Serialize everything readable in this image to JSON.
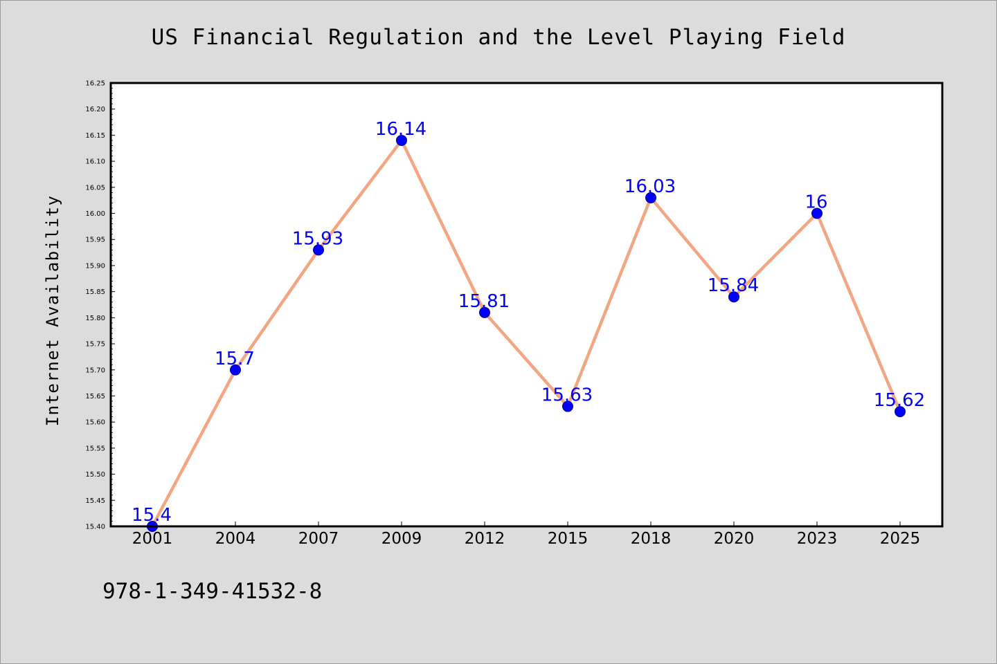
{
  "chart_data": {
    "type": "line",
    "title": "US Financial Regulation and the Level Playing Field",
    "xlabel": "",
    "ylabel": "Internet Availability",
    "categories": [
      "2001",
      "2004",
      "2007",
      "2009",
      "2012",
      "2015",
      "2018",
      "2020",
      "2023",
      "2025"
    ],
    "series": [
      {
        "values": [
          15.4,
          15.7,
          15.93,
          16.14,
          15.81,
          15.63,
          16.03,
          15.84,
          16,
          15.62
        ],
        "labels": [
          "15.4",
          "15.7",
          "15.93",
          "16.14",
          "15.81",
          "15.63",
          "16.03",
          "15.84",
          "16",
          "15.62"
        ]
      }
    ],
    "ylim": [
      15.4,
      16.25
    ],
    "yticks": [
      "15.40",
      "15.45",
      "15.50",
      "15.55",
      "15.60",
      "15.65",
      "15.70",
      "15.75",
      "15.80",
      "15.85",
      "15.90",
      "15.95",
      "16.00",
      "16.05",
      "16.10",
      "16.15",
      "16.20",
      "16.25"
    ],
    "grid": false,
    "line_color": "#f4a582",
    "marker_color": "#0000ff",
    "label_color": "#0000ff"
  },
  "footer": {
    "isbn": "978-1-349-41532-8"
  }
}
